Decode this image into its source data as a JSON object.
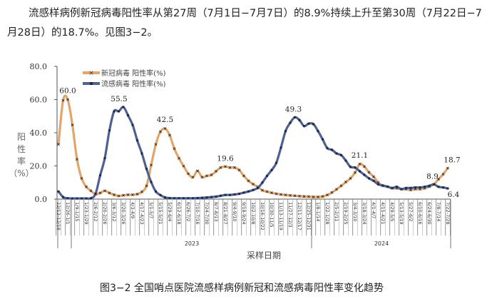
{
  "paragraph": {
    "line1": "流感样病例新冠病毒阳性率从第27周（7月1日−7月7日）的8.9%持续上升至第30周（7月22日−7",
    "line2": "月28日）的18.7%。见图3−2。"
  },
  "caption": "图3−2 全国哨点医院流感样病例新冠和流感病毒阳性率变化趋势",
  "chart_data": {
    "type": "line",
    "xlabel": "采样日期",
    "ylabel_chars": [
      "阳",
      "性",
      "率",
      "（%）"
    ],
    "ylim": [
      0,
      80
    ],
    "yticks": [
      "0.0",
      "20.0",
      "40.0",
      "60.0",
      "80.0"
    ],
    "ytick_values": [
      0,
      20,
      40,
      60,
      80
    ],
    "grid": false,
    "legend_position": "top-left",
    "year_labels": [
      "2023",
      "2024"
    ],
    "x_tick_labels": [
      "12/12-12/18",
      "12/26-1/1",
      "1/9-1/15",
      "1/23-1/29",
      "2/6-2/12",
      "2/20-2/26",
      "3/6-3/12",
      "3/20-3/26",
      "4/3-4/9",
      "4/17-4/23",
      "5/1-5/7",
      "5/15-5/21",
      "5/29-6/4",
      "6/12-6/18",
      "6/26-7/2",
      "7/10-7/16",
      "7/24-7/30",
      "8/7-8/13",
      "8/21-8/27",
      "9/4-9/10",
      "9/18-9/24",
      "10/2-10/8",
      "10/16-10/22",
      "10/30-11/5",
      "11/13-11/19",
      "11/27-12/3",
      "12/11-12/17",
      "12/25-12/31",
      "1/8-1/14",
      "1/22-1/28",
      "2/5-2/11",
      "2/19-2/25",
      "3/4-3/10",
      "3/18-3/24",
      "4/1-4/7",
      "4/15-4/21",
      "4/29-5/5",
      "5/13-5/19",
      "5/27-6/2",
      "6/10-6/16",
      "6/24-6/30",
      "7/8-7/14",
      "7/22-7/28"
    ],
    "series": [
      {
        "name": "新冠病毒 阳性率(%)",
        "color": "#e2a66b",
        "marker": "x",
        "values": [
          33,
          59.5,
          60,
          44.7,
          24,
          12.5,
          7.4,
          5,
          3,
          3.7,
          5,
          3.7,
          2.6,
          1.9,
          2.3,
          2.6,
          2.6,
          3,
          4.4,
          8,
          20.5,
          33,
          40.6,
          42.5,
          38.5,
          30.4,
          24.6,
          19.9,
          15.3,
          13.2,
          17,
          13.2,
          14,
          14.6,
          16.8,
          19,
          19.6,
          19,
          19,
          17.5,
          14,
          11,
          9,
          7.4,
          5.3,
          4.5,
          3.8,
          3.2,
          2.8,
          2.5,
          2.2,
          2,
          1.8,
          1.6,
          1.5,
          1.3,
          1.3,
          1.6,
          2.5,
          4,
          5.9,
          8,
          10.3,
          12.5,
          16,
          21.1,
          19.6,
          16.1,
          13.5,
          10,
          8,
          7.5,
          6.5,
          6.5,
          6,
          6,
          5.5,
          6,
          6,
          6.5,
          7.5,
          8.9,
          12,
          15,
          18.7
        ],
        "data_labels": [
          {
            "index": 2,
            "text": "60.0"
          },
          {
            "index": 23,
            "text": "42.5"
          },
          {
            "index": 36,
            "text": "19.6"
          },
          {
            "index": 65,
            "text": "21.1"
          },
          {
            "index": 81,
            "text": "8.9"
          },
          {
            "index": 84,
            "text": "18.7"
          }
        ]
      },
      {
        "name": "流感病毒 阳性率(%)",
        "color": "#4d6196",
        "marker": "square",
        "values": [
          4.6,
          1.2,
          0.5,
          0.4,
          0.4,
          0.4,
          0.4,
          0.5,
          3.2,
          14.3,
          24.7,
          41.4,
          52.9,
          52.9,
          55.5,
          50.5,
          44.7,
          35.4,
          27.5,
          18.2,
          10.3,
          4.6,
          2.4,
          1,
          0.6,
          0.5,
          0.5,
          0.5,
          0.5,
          0.5,
          0.6,
          0.8,
          1,
          1.2,
          1.5,
          2,
          2.5,
          2.5,
          2.8,
          3.2,
          3.9,
          4.6,
          5.5,
          6.7,
          10,
          14,
          17.5,
          21.8,
          31,
          41,
          46,
          49.3,
          47.6,
          44,
          45.5,
          45.2,
          41,
          36,
          30.7,
          29.7,
          27.5,
          26.5,
          23.2,
          19.4,
          19,
          16.8,
          14.6,
          12.5,
          11,
          8.9,
          8.2,
          7.5,
          6.7,
          7.4,
          6,
          6.7,
          6.7,
          7,
          7,
          7.4,
          8,
          8.9,
          7.4,
          7,
          6.4
        ],
        "data_labels": [
          {
            "index": 14,
            "text": "55.5"
          },
          {
            "index": 51,
            "text": "49.3"
          },
          {
            "index": 84,
            "text": "6.4"
          }
        ]
      }
    ]
  }
}
